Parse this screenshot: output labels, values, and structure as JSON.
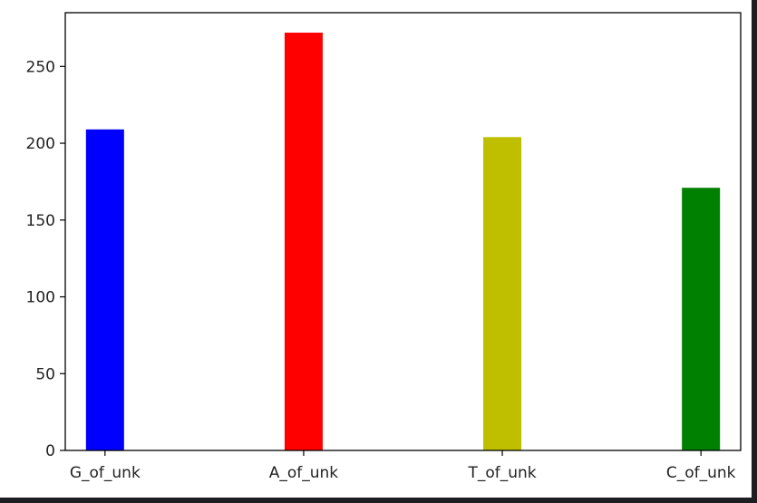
{
  "chart_data": {
    "type": "bar",
    "categories": [
      "G_of_unk",
      "A_of_unk",
      "T_of_unk",
      "C_of_unk"
    ],
    "values": [
      209,
      272,
      204,
      171
    ],
    "colors": [
      "#0000ff",
      "#ff0000",
      "#bfbf00",
      "#008000"
    ],
    "title": "",
    "xlabel": "",
    "ylabel": "",
    "ylim": [
      0,
      285
    ],
    "yticks": [
      0,
      50,
      100,
      150,
      200,
      250
    ],
    "grid": false
  }
}
